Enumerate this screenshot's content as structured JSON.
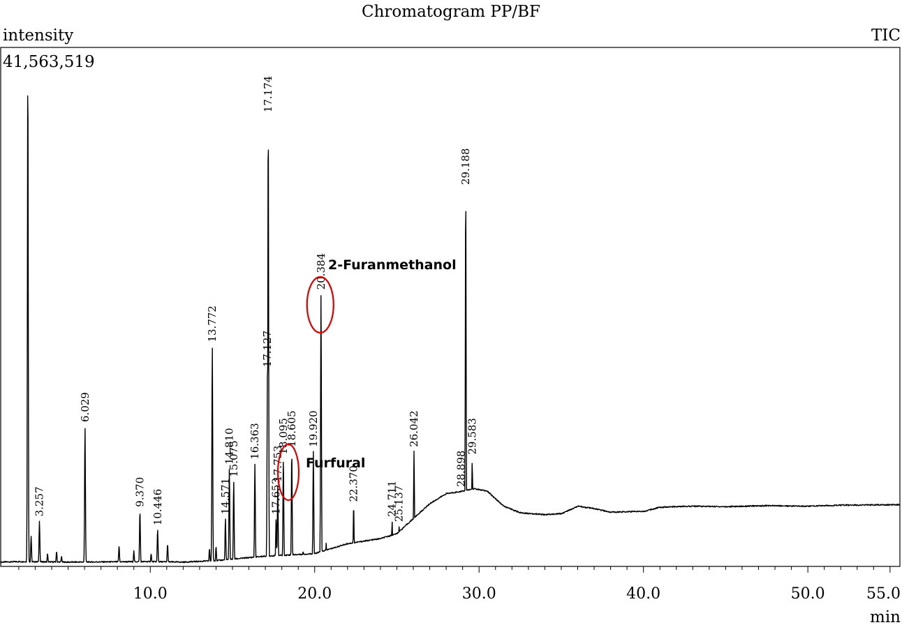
{
  "chart_data": {
    "type": "line",
    "title": "Chromatogram PP/BF",
    "ylabel": "intensity",
    "xlabel": "min",
    "trace_label": "TIC",
    "ymax_label": "41,563,519",
    "xlim": [
      0.9,
      55.6
    ],
    "ylim": [
      0,
      41563519
    ],
    "x_ticks": [
      "10.0",
      "20.0",
      "30.0",
      "40.0",
      "50.0",
      "55.0"
    ],
    "x_tick_values": [
      10,
      20,
      30,
      40,
      50,
      55
    ],
    "grid": false,
    "baseline": [
      [
        0.9,
        0.003
      ],
      [
        2,
        0.004
      ],
      [
        5,
        0.003
      ],
      [
        10,
        0.004
      ],
      [
        12,
        0.003
      ],
      [
        14,
        0.006
      ],
      [
        17,
        0.015
      ],
      [
        20,
        0.02
      ],
      [
        22,
        0.04
      ],
      [
        24,
        0.05
      ],
      [
        25,
        0.06
      ],
      [
        26,
        0.09
      ],
      [
        27,
        0.12
      ],
      [
        28,
        0.14
      ],
      [
        29,
        0.145
      ],
      [
        29.7,
        0.15
      ],
      [
        30.5,
        0.145
      ],
      [
        31.5,
        0.115
      ],
      [
        32.5,
        0.102
      ],
      [
        34,
        0.098
      ],
      [
        35,
        0.1
      ],
      [
        36,
        0.115
      ],
      [
        37,
        0.11
      ],
      [
        38,
        0.103
      ],
      [
        40.1,
        0.105
      ],
      [
        41,
        0.113
      ],
      [
        43,
        0.115
      ],
      [
        45,
        0.114
      ],
      [
        47.5,
        0.116
      ],
      [
        50,
        0.115
      ],
      [
        52,
        0.117
      ],
      [
        55.6,
        0.118
      ]
    ],
    "peaks": [
      {
        "x": 2.55,
        "y": 1.0,
        "label": ""
      },
      {
        "x": 2.75,
        "y": 0.055,
        "label": ""
      },
      {
        "x": 3.257,
        "y": 0.086,
        "label": "3.257"
      },
      {
        "x": 3.75,
        "y": 0.02,
        "label": ""
      },
      {
        "x": 4.3,
        "y": 0.025,
        "label": ""
      },
      {
        "x": 4.6,
        "y": 0.015,
        "label": ""
      },
      {
        "x": 6.029,
        "y": 0.275,
        "label": "6.029"
      },
      {
        "x": 8.1,
        "y": 0.035,
        "label": ""
      },
      {
        "x": 9.0,
        "y": 0.025,
        "label": ""
      },
      {
        "x": 9.37,
        "y": 0.105,
        "label": "9.370"
      },
      {
        "x": 10.05,
        "y": 0.02,
        "label": ""
      },
      {
        "x": 10.446,
        "y": 0.068,
        "label": "10.446"
      },
      {
        "x": 11.05,
        "y": 0.04,
        "label": ""
      },
      {
        "x": 13.6,
        "y": 0.03,
        "label": ""
      },
      {
        "x": 13.772,
        "y": 0.435,
        "label": "13.772"
      },
      {
        "x": 14.0,
        "y": 0.035,
        "label": ""
      },
      {
        "x": 14.571,
        "y": 0.09,
        "label": "14.571"
      },
      {
        "x": 14.81,
        "y": 0.19,
        "label": "14.810"
      },
      {
        "x": 15.075,
        "y": 0.165,
        "label": "15.075"
      },
      {
        "x": 16.363,
        "y": 0.2,
        "label": "16.363"
      },
      {
        "x": 17.127,
        "y": 0.385,
        "label": "17.127"
      },
      {
        "x": 17.174,
        "y": 0.895,
        "label": "17.174"
      },
      {
        "x": 17.653,
        "y": 0.09,
        "label": "17.653"
      },
      {
        "x": 17.753,
        "y": 0.155,
        "label": "17.753"
      },
      {
        "x": 18.095,
        "y": 0.21,
        "label": "18.095"
      },
      {
        "x": 18.605,
        "y": 0.225,
        "label": "18.605"
      },
      {
        "x": 19.3,
        "y": 0.025,
        "label": ""
      },
      {
        "x": 19.92,
        "y": 0.225,
        "label": "19.920"
      },
      {
        "x": 20.384,
        "y": 0.54,
        "label": "20.384"
      },
      {
        "x": 20.7,
        "y": 0.04,
        "label": ""
      },
      {
        "x": 22.0,
        "y": 0.025,
        "label": ""
      },
      {
        "x": 22.37,
        "y": 0.115,
        "label": "22.370"
      },
      {
        "x": 23.2,
        "y": 0.02,
        "label": ""
      },
      {
        "x": 24.711,
        "y": 0.085,
        "label": "24.711"
      },
      {
        "x": 25.137,
        "y": 0.075,
        "label": "25.137"
      },
      {
        "x": 26.042,
        "y": 0.225,
        "label": "26.042"
      },
      {
        "x": 26.7,
        "y": 0.025,
        "label": ""
      },
      {
        "x": 27.1,
        "y": 0.02,
        "label": ""
      },
      {
        "x": 28.898,
        "y": 0.145,
        "label": "28.898"
      },
      {
        "x": 29.188,
        "y": 0.75,
        "label": "29.188"
      },
      {
        "x": 29.583,
        "y": 0.21,
        "label": "29.583"
      },
      {
        "x": 30.0,
        "y": 0.025,
        "label": ""
      },
      {
        "x": 30.7,
        "y": 0.025,
        "label": ""
      },
      {
        "x": 32.25,
        "y": 0.04,
        "label": ""
      },
      {
        "x": 40.3,
        "y": 0.02,
        "label": ""
      },
      {
        "x": 41.95,
        "y": 0.045,
        "label": ""
      },
      {
        "x": 44.4,
        "y": 0.006,
        "label": ""
      },
      {
        "x": 51.2,
        "y": 0.012,
        "label": ""
      }
    ],
    "annotations": [
      {
        "text": "2-Furanmethanol",
        "x": 20.384,
        "circled_peak": "20.384"
      },
      {
        "text": "Furfural",
        "x": 17.753,
        "circled_peak": "17.753"
      }
    ],
    "annotation_color": "#e00000",
    "line_color": "#000000"
  }
}
